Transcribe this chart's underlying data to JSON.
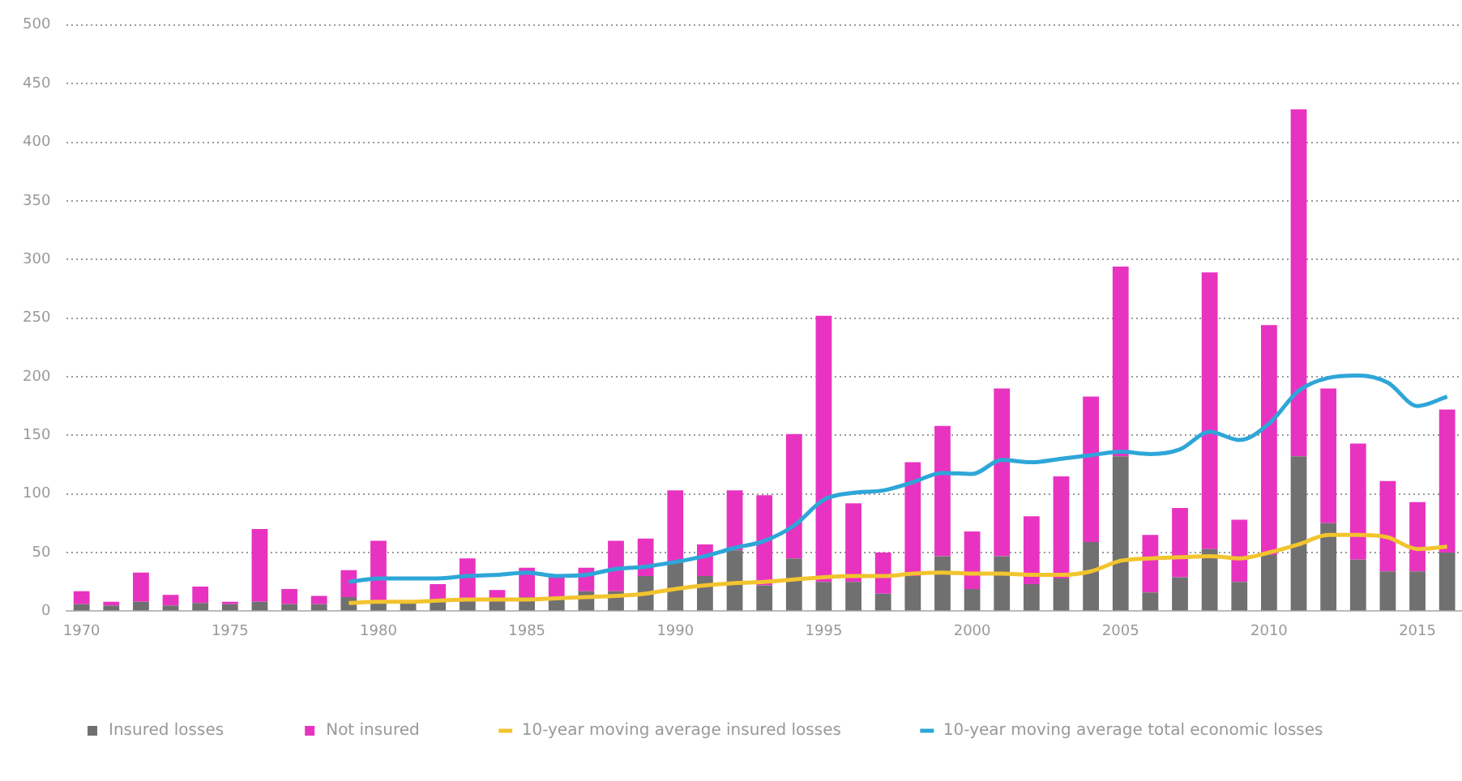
{
  "chart_data": {
    "type": "bar",
    "stacked": true,
    "grid": "y",
    "legend": "bottom",
    "categories": [
      "1970",
      null,
      null,
      null,
      null,
      "1975",
      null,
      null,
      null,
      null,
      "1980",
      null,
      null,
      null,
      null,
      "1985",
      null,
      null,
      null,
      null,
      "1990",
      null,
      null,
      null,
      null,
      "1995",
      null,
      null,
      null,
      null,
      "2000",
      null,
      null,
      null,
      null,
      "2005",
      null,
      null,
      null,
      null,
      "2010",
      null,
      null,
      null,
      null,
      "2015",
      null
    ],
    "ylim": [
      0,
      500
    ],
    "yticks": [
      0,
      50,
      100,
      150,
      200,
      250,
      300,
      350,
      400,
      450,
      500
    ],
    "series": [
      {
        "name": "Insured losses",
        "type": "bar",
        "color": "#707070",
        "values": [
          6,
          5,
          8,
          5,
          7,
          6,
          8,
          6,
          6,
          12,
          8,
          7,
          8,
          10,
          10,
          12,
          10,
          17,
          17,
          30,
          41,
          30,
          52,
          22,
          45,
          25,
          25,
          15,
          30,
          47,
          19,
          47,
          23,
          28,
          59,
          132,
          16,
          29,
          53,
          25,
          48,
          132,
          75,
          44,
          34,
          34,
          50
        ]
      },
      {
        "name": "Not insured",
        "type": "bar",
        "color": "#e833c0",
        "values": [
          11,
          3,
          25,
          9,
          14,
          2,
          62,
          13,
          7,
          23,
          52,
          null,
          15,
          35,
          8,
          25,
          20,
          20,
          43,
          32,
          62,
          27,
          51,
          77,
          106,
          227,
          67,
          35,
          97,
          111,
          49,
          143,
          58,
          87,
          124,
          162,
          49,
          59,
          236,
          53,
          196,
          296,
          115,
          99,
          77,
          59,
          122
        ]
      },
      {
        "name": "10-year moving average insured losses",
        "type": "line",
        "color": "#f2c42e",
        "values": [
          null,
          null,
          null,
          null,
          null,
          null,
          null,
          null,
          null,
          7,
          8,
          8,
          9,
          10,
          10,
          10,
          11,
          12,
          13,
          15,
          19,
          22,
          24,
          25,
          27,
          29,
          30,
          30,
          32,
          33,
          32,
          32,
          31,
          31,
          34,
          43,
          45,
          46,
          47,
          45,
          50,
          57,
          65,
          65,
          63,
          53,
          55
        ]
      },
      {
        "name": "10-year moving average total economic losses",
        "type": "line",
        "color": "#2ea6d8",
        "values": [
          null,
          null,
          null,
          null,
          null,
          null,
          null,
          null,
          null,
          25,
          28,
          28,
          28,
          30,
          31,
          33,
          30,
          31,
          36,
          38,
          42,
          47,
          54,
          60,
          73,
          95,
          101,
          103,
          110,
          118,
          117,
          129,
          127,
          130,
          133,
          136,
          134,
          138,
          153,
          146,
          160,
          188,
          199,
          201,
          195,
          175,
          183
        ]
      }
    ]
  }
}
